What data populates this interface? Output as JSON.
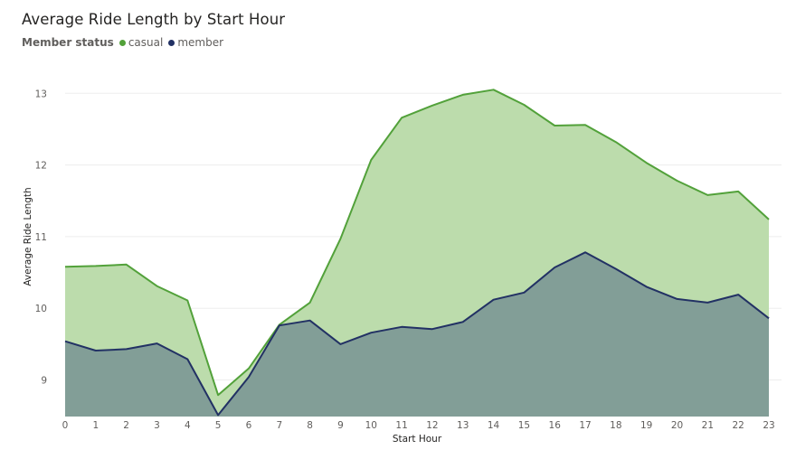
{
  "chart_data": {
    "type": "area",
    "title": "Average Ride Length by Start Hour",
    "xlabel": "Start Hour",
    "ylabel": "Average Ride Length",
    "legend_title": "Member status",
    "legend_placement": "top-left",
    "grid": true,
    "x": [
      0,
      1,
      2,
      3,
      4,
      5,
      6,
      7,
      8,
      9,
      10,
      11,
      12,
      13,
      14,
      15,
      16,
      17,
      18,
      19,
      20,
      21,
      22,
      23
    ],
    "ylim": [
      8.5,
      13.2
    ],
    "yticks": [
      9,
      10,
      11,
      12,
      13
    ],
    "series": [
      {
        "name": "casual",
        "color": "#52a13a",
        "fill": "#bcdcac",
        "values": [
          10.58,
          10.59,
          10.61,
          10.31,
          10.11,
          8.79,
          9.16,
          9.77,
          10.08,
          10.97,
          12.07,
          12.66,
          12.83,
          12.98,
          13.05,
          12.84,
          12.55,
          12.56,
          12.32,
          12.03,
          11.78,
          11.58,
          11.63,
          11.24
        ]
      },
      {
        "name": "member",
        "color": "#223164",
        "fill": "#829e97",
        "values": [
          9.54,
          9.41,
          9.43,
          9.51,
          9.29,
          8.51,
          9.04,
          9.76,
          9.83,
          9.5,
          9.66,
          9.74,
          9.71,
          9.81,
          10.12,
          10.22,
          10.57,
          10.78,
          10.55,
          10.3,
          10.13,
          10.08,
          10.19,
          9.86
        ]
      }
    ]
  }
}
